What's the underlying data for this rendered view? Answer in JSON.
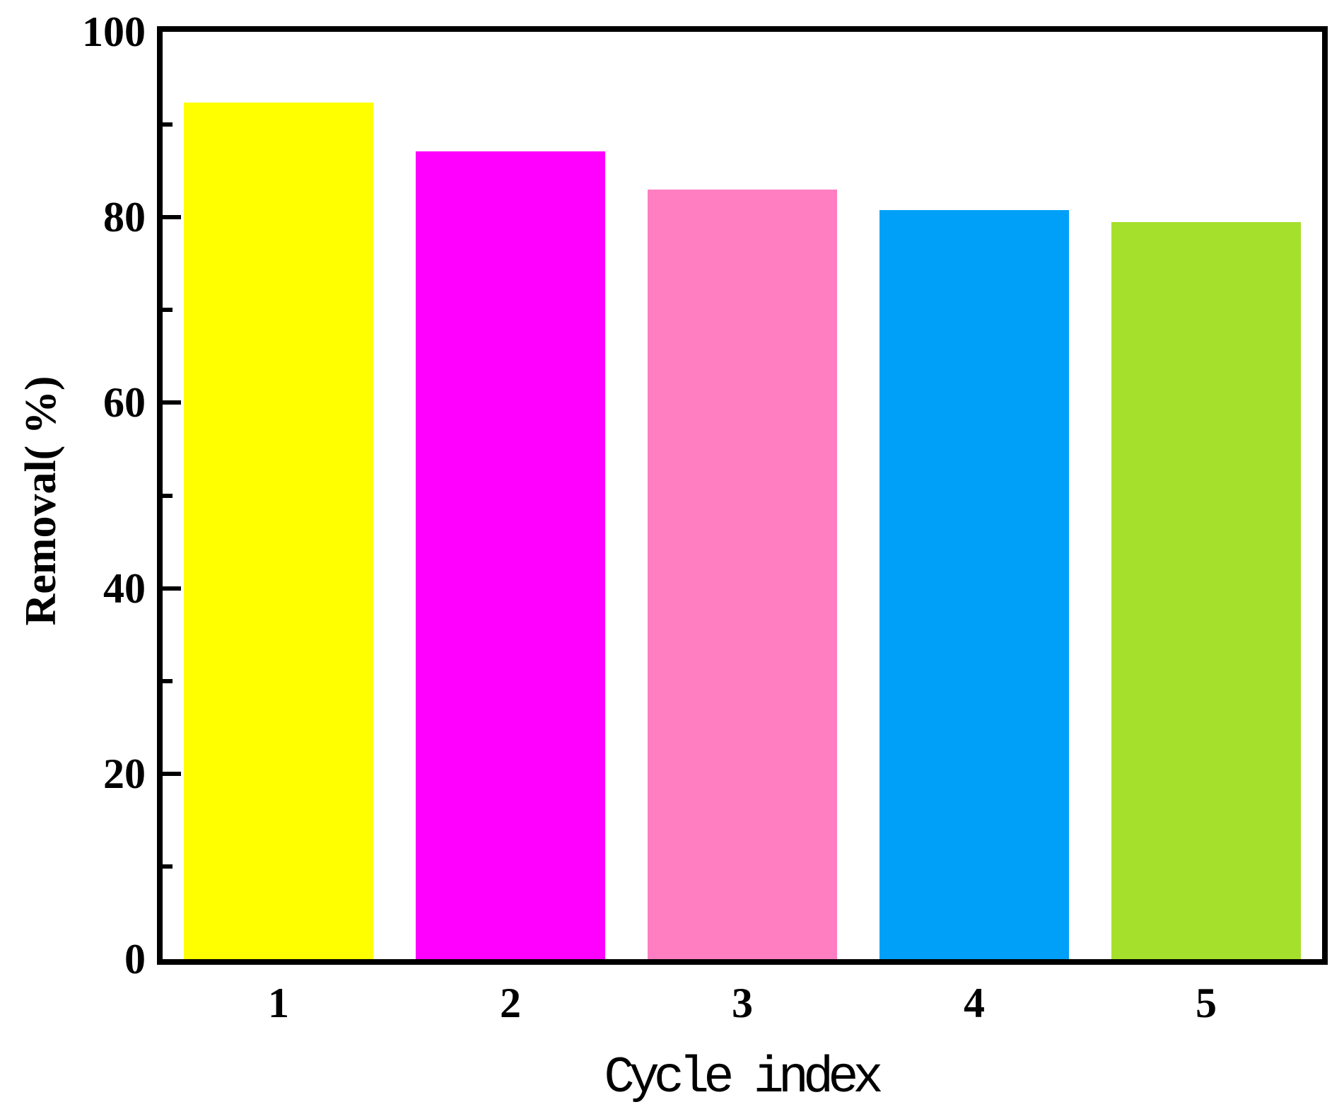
{
  "chart_data": {
    "type": "bar",
    "title": "",
    "xlabel": "Cycle index",
    "ylabel": "Removal( %)",
    "categories": [
      "1",
      "2",
      "3",
      "4",
      "5"
    ],
    "values": [
      92.4,
      87.1,
      83.0,
      80.8,
      79.5
    ],
    "bar_colors": [
      "#FFFF00",
      "#FF00FF",
      "#FF7EC2",
      "#00A0F8",
      "#A4E02C"
    ],
    "ylim": [
      0,
      100
    ],
    "y_major_ticks": [
      0,
      20,
      40,
      60,
      80,
      100
    ],
    "y_minor_ticks": [
      10,
      30,
      50,
      70,
      90
    ],
    "grid": false,
    "legend": "none",
    "bar_width_fraction": 0.815,
    "spine_color": "#000000",
    "background_color": "#FFFFFF"
  }
}
